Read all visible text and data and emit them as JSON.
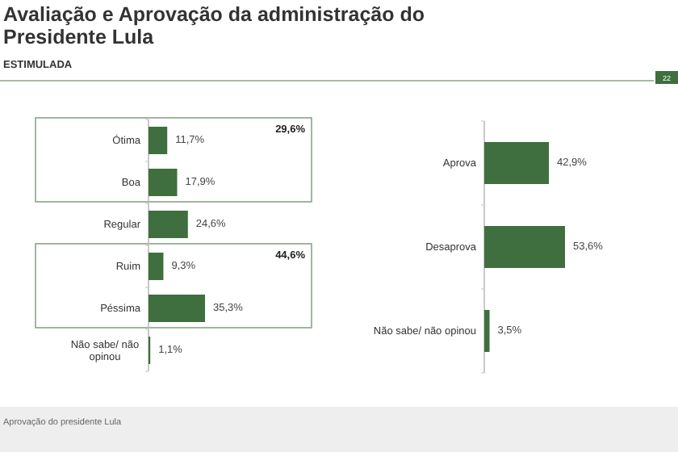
{
  "chart_data": [
    {
      "type": "bar",
      "orientation": "horizontal",
      "title": "Avaliação e Aprovação da administração do Presidente Lula",
      "subtitle": "ESTIMULADA",
      "categories": [
        "Ótima",
        "Boa",
        "Regular",
        "Ruim",
        "Péssima",
        "Não sabe/ não opinou"
      ],
      "values": [
        11.7,
        17.9,
        24.6,
        9.3,
        35.3,
        1.1
      ],
      "value_labels": [
        "11,7%",
        "17,9%",
        "24,6%",
        "9,3%",
        "35,3%",
        "1,1%"
      ],
      "color": "#3f6e3f",
      "annotations": [
        "29,6%",
        "44,6%",
        "Aprovação do presidente Lula",
        "22"
      ]
    },
    {
      "type": "bar",
      "orientation": "horizontal",
      "categories": [
        "Aprova",
        "Desaprova",
        "Não sabe/ não opinou"
      ],
      "values": [
        42.9,
        53.6,
        3.5
      ],
      "value_labels": [
        "42,9%",
        "53,6%",
        "3,5%"
      ],
      "color": "#3f6e3f"
    }
  ]
}
